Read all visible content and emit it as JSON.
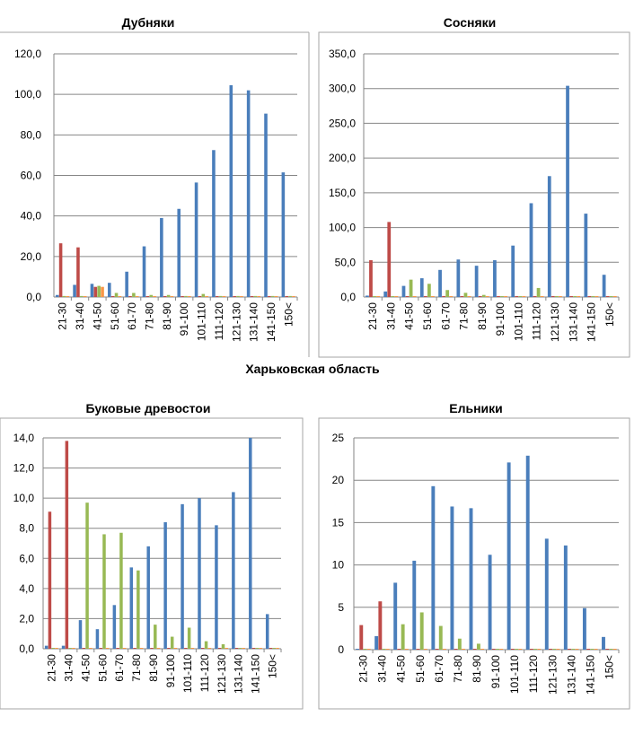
{
  "page": {
    "region_title": "Харьковская область"
  },
  "colors": {
    "series1": "#4a7ebb",
    "series2": "#be4b48",
    "series3": "#98b954",
    "series4": "#f79646",
    "grid": "#868686"
  },
  "chart_data": [
    {
      "type": "bar",
      "title": "Дубняки",
      "categories": [
        "21-30",
        "31-40",
        "41-50",
        "51-60",
        "61-70",
        "71-80",
        "81-90",
        "91-100",
        "101-110",
        "111-120",
        "121-130",
        "131-140",
        "141-150",
        "150<"
      ],
      "ylim": [
        0,
        120
      ],
      "yticks": [
        "0,0",
        "20,0",
        "40,0",
        "60,0",
        "80,0",
        "100,0",
        "120,0"
      ],
      "grid": true,
      "legend": "none",
      "series": [
        {
          "color": "#4a7ebb",
          "values": [
            1.0,
            6.0,
            6.5,
            7.0,
            12.5,
            25.0,
            39.0,
            43.5,
            56.5,
            72.5,
            104.5,
            102.0,
            90.5,
            61.5
          ]
        },
        {
          "color": "#be4b48",
          "values": [
            26.5,
            24.5,
            5.0,
            0,
            0,
            0,
            0,
            0,
            0,
            0,
            0,
            0,
            0,
            0
          ]
        },
        {
          "color": "#98b954",
          "values": [
            0.5,
            0.5,
            5.5,
            2.0,
            2.0,
            1.0,
            1.0,
            0.5,
            1.5,
            0.5,
            0.5,
            0.5,
            0.5,
            0.5
          ]
        },
        {
          "color": "#f79646",
          "values": [
            0,
            0,
            5.0,
            0,
            0,
            0,
            0,
            0,
            0,
            0,
            0,
            0,
            0,
            0
          ]
        }
      ]
    },
    {
      "type": "bar",
      "title": "Сосняки",
      "categories": [
        "21-30",
        "31-40",
        "41-50",
        "51-60",
        "61-70",
        "71-80",
        "81-90",
        "91-100",
        "101-110",
        "111-120",
        "121-130",
        "131-140",
        "141-150",
        "150<"
      ],
      "ylim": [
        0,
        350
      ],
      "yticks": [
        "0,0",
        "50,0",
        "100,0",
        "150,0",
        "200,0",
        "250,0",
        "300,0",
        "350,0"
      ],
      "grid": true,
      "legend": "none",
      "series": [
        {
          "color": "#4a7ebb",
          "values": [
            2,
            8,
            16,
            27,
            39,
            54,
            45,
            53,
            74,
            135,
            174,
            304,
            120,
            32
          ]
        },
        {
          "color": "#be4b48",
          "values": [
            53,
            108,
            0,
            0,
            0,
            0,
            0,
            0,
            0,
            0,
            0,
            0,
            0,
            0
          ]
        },
        {
          "color": "#98b954",
          "values": [
            0,
            0,
            25,
            19,
            10,
            6,
            3,
            1,
            1,
            13,
            1,
            1,
            1,
            1
          ]
        },
        {
          "color": "#f79646",
          "values": [
            0,
            0,
            0,
            0,
            0,
            0,
            0,
            0,
            0,
            0,
            0,
            0,
            0,
            0
          ]
        }
      ]
    },
    {
      "type": "bar",
      "title": "Буковые древостои",
      "categories": [
        "21-30",
        "31-40",
        "41-50",
        "51-60",
        "61-70",
        "71-80",
        "81-90",
        "91-100",
        "101-110",
        "111-120",
        "121-130",
        "131-140",
        "141-150",
        "150<"
      ],
      "ylim": [
        0,
        14
      ],
      "yticks": [
        "0,0",
        "2,0",
        "4,0",
        "6,0",
        "8,0",
        "10,0",
        "12,0",
        "14,0"
      ],
      "grid": true,
      "legend": "none",
      "series": [
        {
          "color": "#4a7ebb",
          "values": [
            0.2,
            0.2,
            1.9,
            1.3,
            2.9,
            5.4,
            6.8,
            8.4,
            9.6,
            10.0,
            8.2,
            10.4,
            14.0,
            2.3
          ]
        },
        {
          "color": "#be4b48",
          "values": [
            9.1,
            13.8,
            0,
            0,
            0,
            0,
            0,
            0,
            0,
            0,
            0,
            0,
            0,
            0
          ]
        },
        {
          "color": "#98b954",
          "values": [
            0,
            0,
            9.7,
            7.6,
            7.7,
            5.2,
            1.6,
            0.8,
            1.4,
            0.5,
            0.3,
            0,
            0,
            0
          ]
        },
        {
          "color": "#f79646",
          "values": [
            0,
            0,
            0,
            0,
            0,
            0,
            0,
            0,
            0,
            0,
            0,
            0,
            0,
            0
          ]
        }
      ]
    },
    {
      "type": "bar",
      "title": "Ельники",
      "categories": [
        "21-30",
        "31-40",
        "41-50",
        "51-60",
        "61-70",
        "71-80",
        "81-90",
        "91-100",
        "101-110",
        "111-120",
        "121-130",
        "131-140",
        "141-150",
        "150<"
      ],
      "ylim": [
        0,
        25
      ],
      "yticks": [
        "0",
        "5",
        "10",
        "15",
        "20",
        "25"
      ],
      "grid": true,
      "legend": "none",
      "series": [
        {
          "color": "#4a7ebb",
          "values": [
            0.1,
            1.6,
            7.9,
            10.5,
            19.3,
            16.9,
            16.7,
            11.2,
            22.1,
            22.9,
            13.1,
            12.3,
            4.9,
            1.5
          ]
        },
        {
          "color": "#be4b48",
          "values": [
            2.9,
            5.7,
            0,
            0,
            0,
            0,
            0,
            0,
            0,
            0,
            0,
            0,
            0,
            0
          ]
        },
        {
          "color": "#98b954",
          "values": [
            0,
            0,
            3.0,
            4.4,
            2.8,
            1.3,
            0.7,
            0,
            0,
            0,
            0,
            0,
            0,
            0
          ]
        },
        {
          "color": "#f79646",
          "values": [
            0,
            0,
            0,
            0,
            0,
            0,
            0,
            0,
            0,
            0,
            0,
            0,
            0,
            0
          ]
        }
      ]
    }
  ]
}
